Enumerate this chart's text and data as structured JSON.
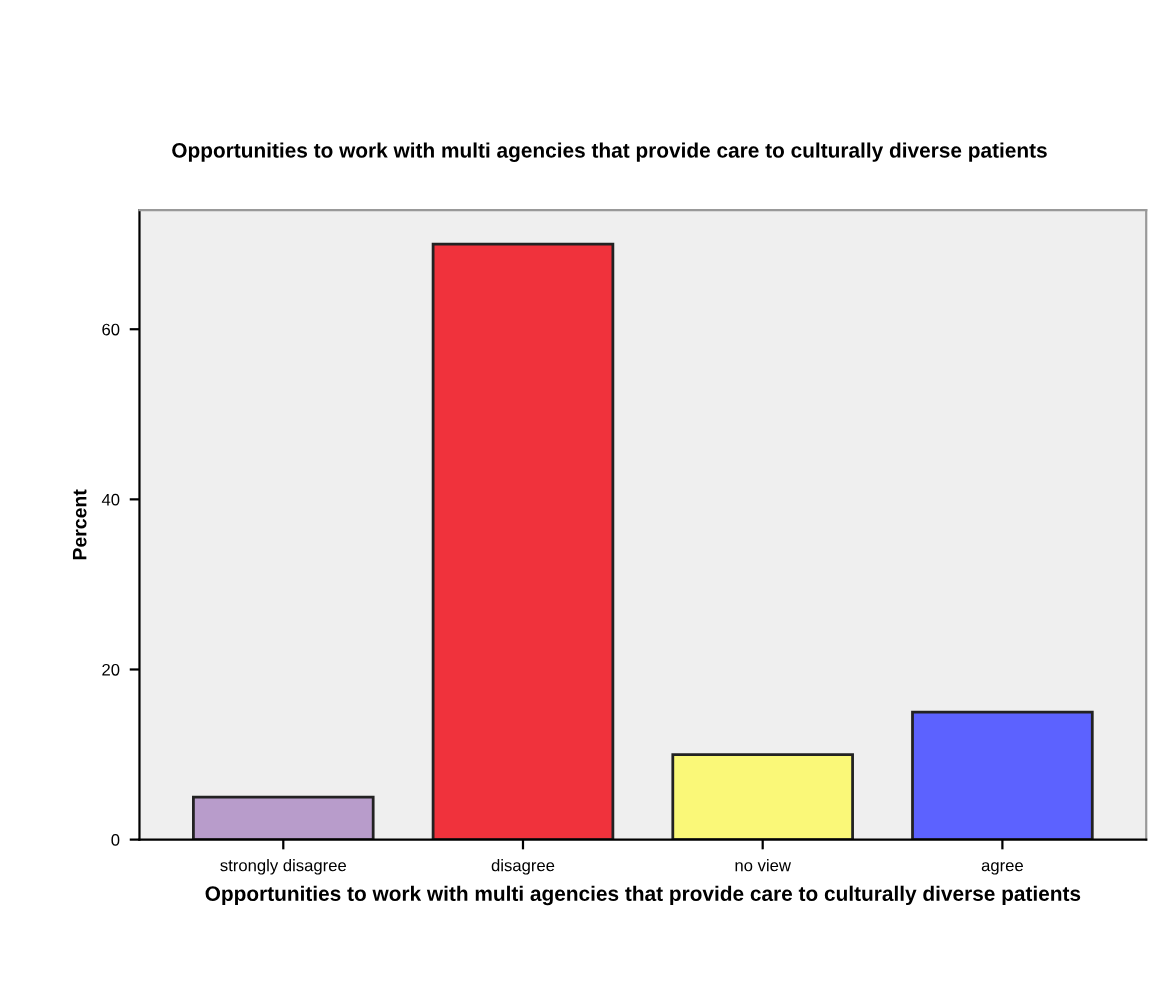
{
  "chart_data": {
    "type": "bar",
    "title": "Opportunities to work with multi agencies that provide care to culturally diverse patients",
    "xlabel": "Opportunities to work with multi agencies that provide care to culturally diverse patients",
    "ylabel": "Percent",
    "categories": [
      "strongly disagree",
      "disagree",
      "no view",
      "agree"
    ],
    "values": [
      5,
      70,
      10,
      15
    ],
    "colors": [
      "#b89ccb",
      "#f0323c",
      "#faf878",
      "#5c62ff"
    ],
    "ylim": [
      0,
      74
    ],
    "yticks": [
      0,
      20,
      40,
      60
    ],
    "grid": false,
    "legend": false
  }
}
